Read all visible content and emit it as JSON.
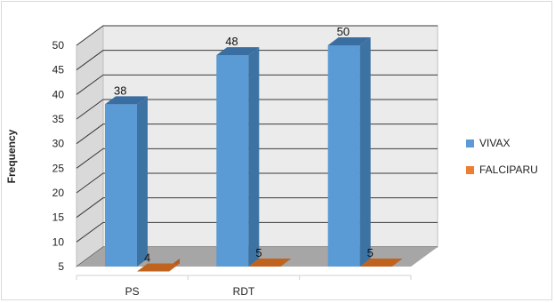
{
  "chart_data": {
    "type": "bar",
    "style": "3d-clustered-column",
    "categories": [
      "PS",
      "RDT",
      ""
    ],
    "series": [
      {
        "name": "VIVAX",
        "color": "#5b9bd5",
        "side_color": "#3d73a3",
        "top_color": "#3a6da0",
        "values": [
          38,
          48,
          50
        ]
      },
      {
        "name": "FALCIPARU",
        "color": "#ed7d31",
        "side_color": "#b05a1c",
        "top_color": "#c0631f",
        "values": [
          4,
          5,
          5
        ]
      }
    ],
    "data_labels": [
      [
        "38",
        "48",
        "50"
      ],
      [
        "4",
        "5",
        "5"
      ]
    ],
    "xlabel": "",
    "ylabel": "Frequency",
    "ylim": [
      5,
      50
    ],
    "yticks": [
      "5",
      "10",
      "15",
      "20",
      "25",
      "30",
      "35",
      "40",
      "45",
      "50"
    ],
    "grid": true,
    "legend": "right",
    "colors": {
      "wall": "#ebebeb",
      "floor": "#a6a6a6",
      "gridline": "#3a3a3a"
    }
  }
}
